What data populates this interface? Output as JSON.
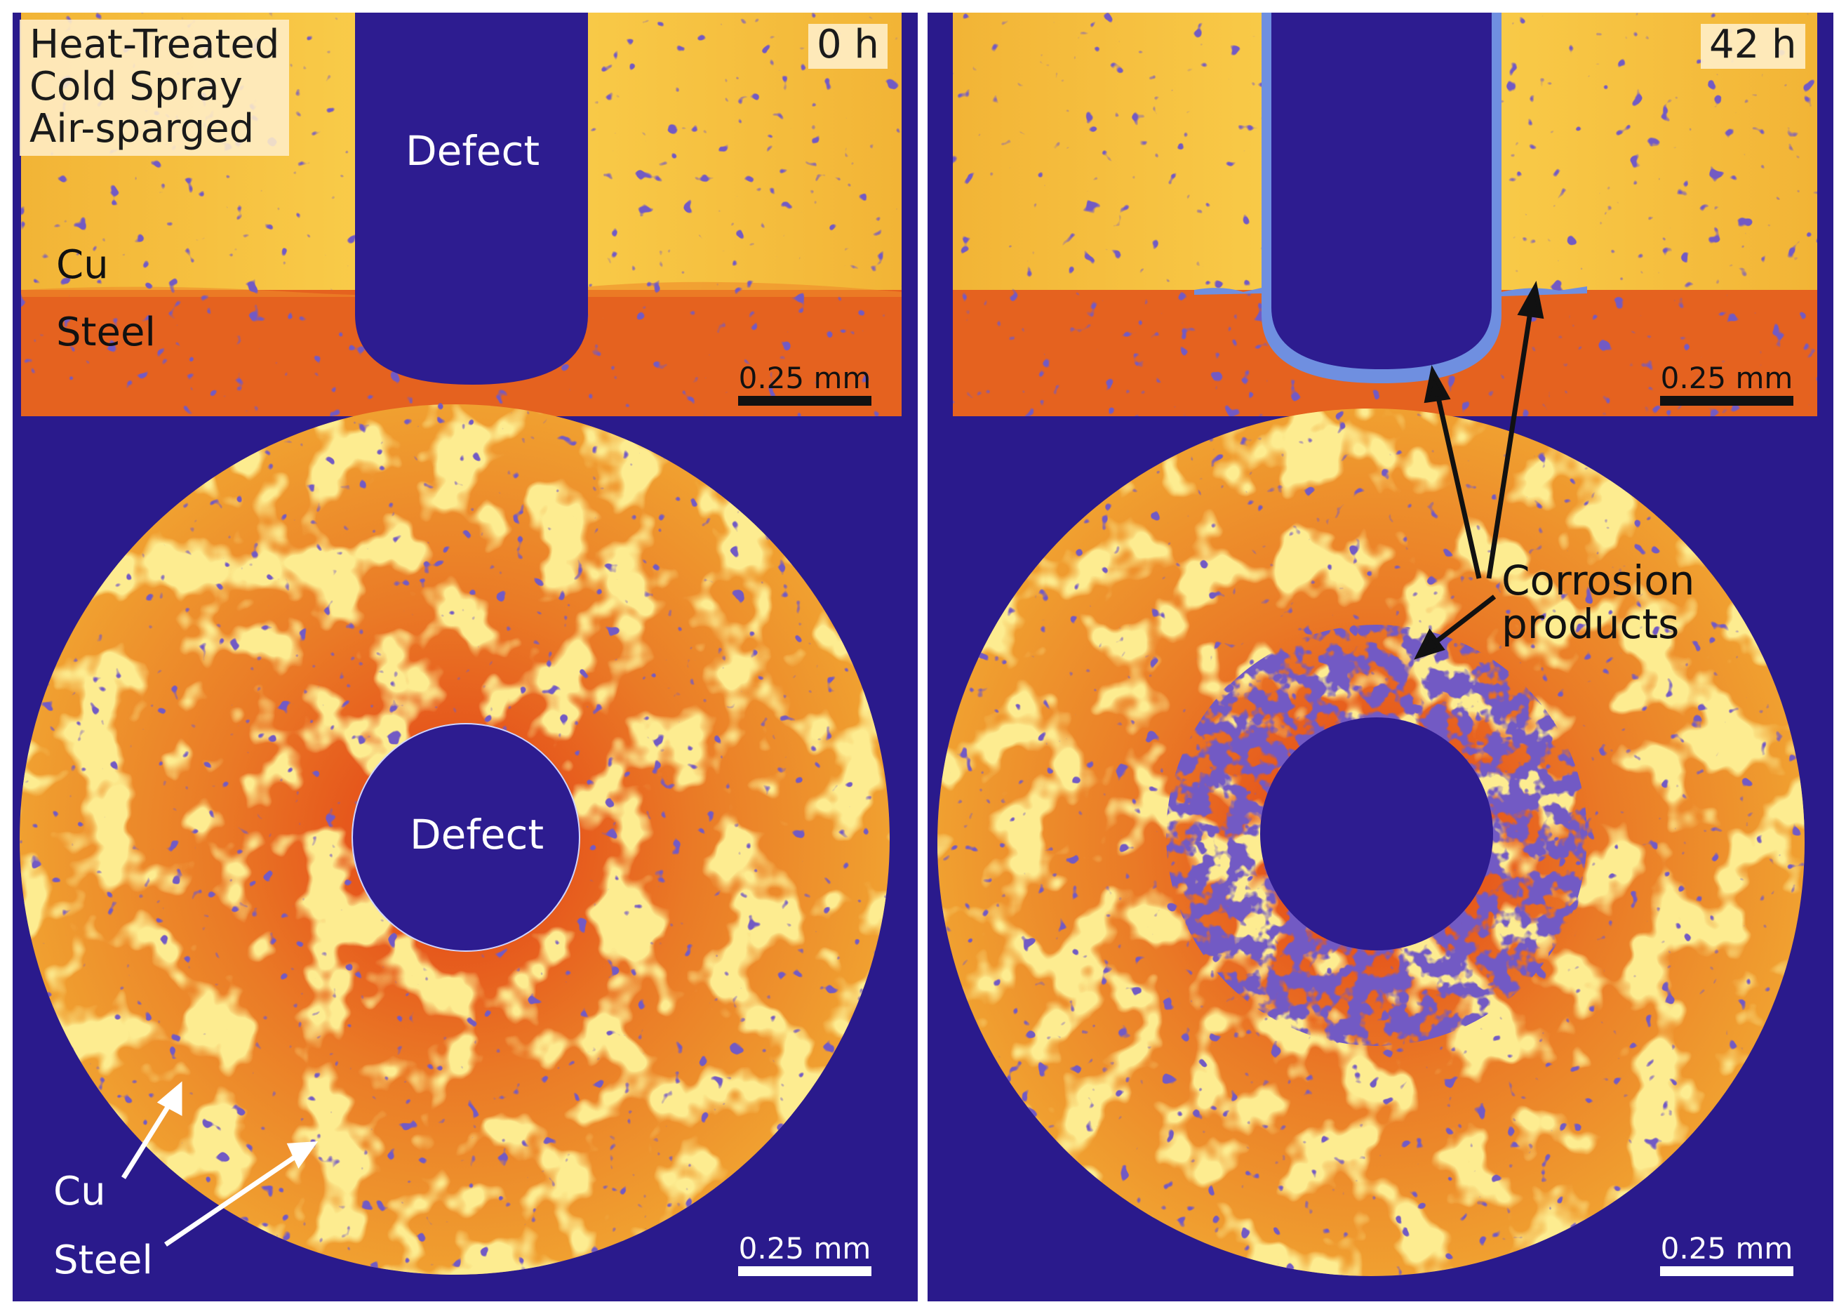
{
  "colors": {
    "background": "#2a1a8c",
    "copper": "#f7c640",
    "steel": "#e8601e",
    "corrosion_product": "#6f8fe0"
  },
  "condition_lines": [
    "Heat-Treated",
    "Cold Spray",
    "Air-sparged"
  ],
  "panels": {
    "left": {
      "time": "0 h",
      "top_defect_label": "Defect",
      "top_cu_label": "Cu",
      "top_steel_label": "Steel",
      "top_scale": "0.25 mm",
      "bottom_defect_label": "Defect",
      "bottom_cu_label": "Cu",
      "bottom_steel_label": "Steel",
      "bottom_scale": "0.25 mm"
    },
    "right": {
      "time": "42 h",
      "top_scale": "0.25 mm",
      "corrosion_lines": [
        "Corrosion",
        "products"
      ],
      "bottom_scale": "0.25 mm"
    }
  }
}
